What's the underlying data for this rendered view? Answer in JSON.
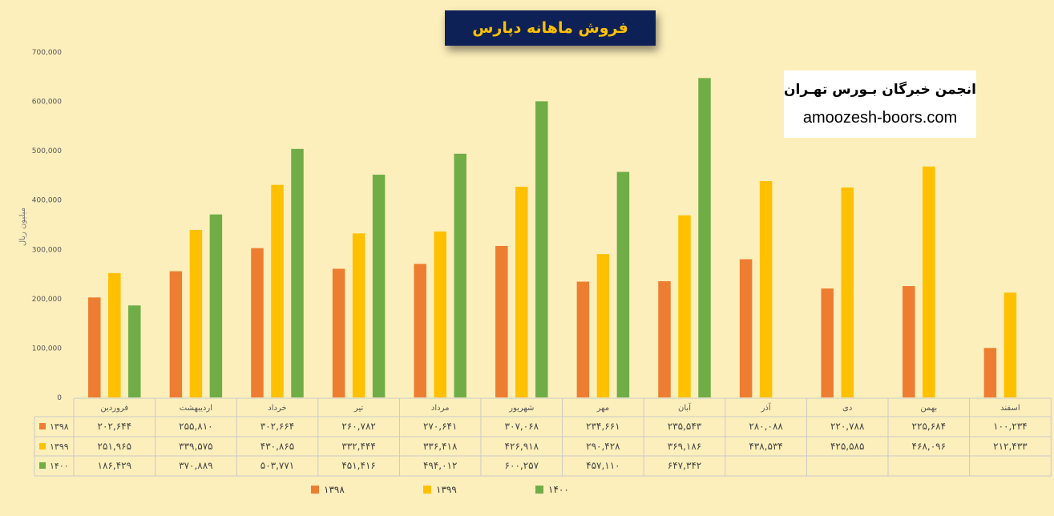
{
  "header": {
    "title": "فروش ماهانه دپارس"
  },
  "brand": {
    "name": "انجمن خبرگان بـورس تهـران",
    "url": "amoozesh-boors.com"
  },
  "colors": {
    "s1398": "#ed7d31",
    "s1399": "#ffc000",
    "s1400": "#70ad47",
    "background": "#fdefbb"
  },
  "chart_data": {
    "type": "bar",
    "ylabel": "میلیون ریال",
    "ylim": [
      0,
      700000
    ],
    "yticks": [
      0,
      100000,
      200000,
      300000,
      400000,
      500000,
      600000,
      700000
    ],
    "ytick_labels": [
      "0",
      "100,000",
      "200,000",
      "300,000",
      "400,000",
      "500,000",
      "600,000",
      "700,000"
    ],
    "categories": [
      "فروردین",
      "اردیبهشت",
      "خرداد",
      "تیر",
      "مرداد",
      "شهریور",
      "مهر",
      "آبان",
      "آذر",
      "دی",
      "بهمن",
      "اسفند"
    ],
    "series": [
      {
        "name": "۱۳۹۸",
        "values": [
          202644,
          255810,
          302664,
          260782,
          270641,
          307068,
          234661,
          235543,
          280088,
          220788,
          225684,
          100234
        ],
        "labels": [
          "۲۰۲,۶۴۴",
          "۲۵۵,۸۱۰",
          "۳۰۲,۶۶۴",
          "۲۶۰,۷۸۲",
          "۲۷۰,۶۴۱",
          "۳۰۷,۰۶۸",
          "۲۳۴,۶۶۱",
          "۲۳۵,۵۴۳",
          "۲۸۰,۰۸۸",
          "۲۲۰,۷۸۸",
          "۲۲۵,۶۸۴",
          "۱۰۰,۲۳۴"
        ]
      },
      {
        "name": "۱۳۹۹",
        "values": [
          251965,
          339575,
          430865,
          332444,
          336418,
          426918,
          290428,
          369186,
          438534,
          425585,
          468096,
          212433
        ],
        "labels": [
          "۲۵۱,۹۶۵",
          "۳۳۹,۵۷۵",
          "۴۳۰,۸۶۵",
          "۳۳۲,۴۴۴",
          "۳۳۶,۴۱۸",
          "۴۲۶,۹۱۸",
          "۲۹۰,۴۲۸",
          "۳۶۹,۱۸۶",
          "۴۳۸,۵۳۴",
          "۴۲۵,۵۸۵",
          "۴۶۸,۰۹۶",
          "۲۱۲,۴۳۳"
        ]
      },
      {
        "name": "۱۴۰۰",
        "values": [
          186429,
          370889,
          503771,
          451416,
          494012,
          600257,
          457110,
          647342,
          null,
          null,
          null,
          null
        ],
        "labels": [
          "۱۸۶,۴۲۹",
          "۳۷۰,۸۸۹",
          "۵۰۳,۷۷۱",
          "۴۵۱,۴۱۶",
          "۴۹۴,۰۱۲",
          "۶۰۰,۲۵۷",
          "۴۵۷,۱۱۰",
          "۶۴۷,۳۴۲",
          "",
          "",
          "",
          ""
        ]
      }
    ],
    "legend_position": "bottom",
    "grid": false,
    "data_table": true
  }
}
